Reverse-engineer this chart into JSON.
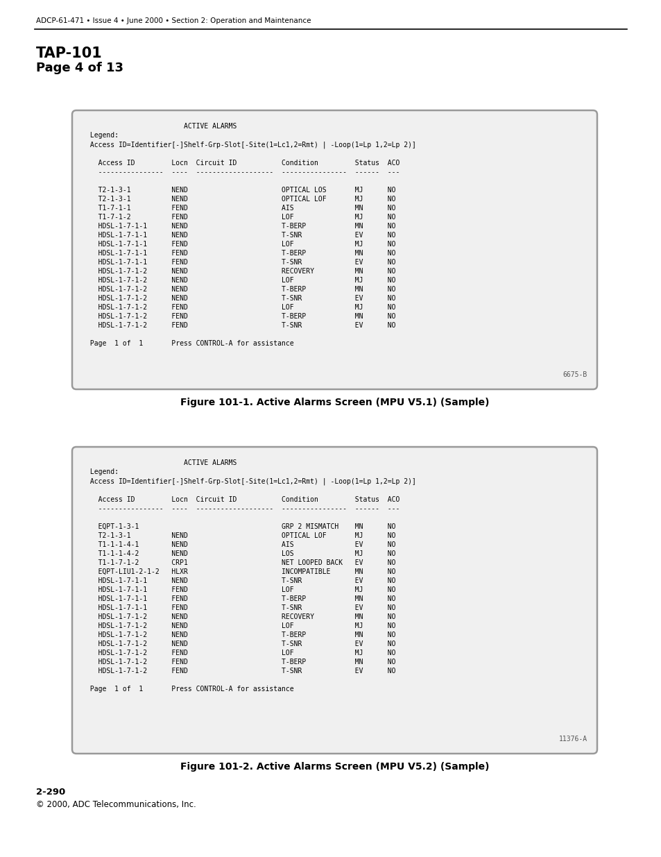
{
  "header_text": "ADCP-61-471 • Issue 4 • June 2000 • Section 2: Operation and Maintenance",
  "tap_title": "TAP-101",
  "tap_subtitle": "Page 4 of 13",
  "footer_page": "2-290",
  "footer_copy": "© 2000, ADC Telecommunications, Inc.",
  "fig1_label": "Figure 101-1. Active Alarms Screen (MPU V5.1) (Sample)",
  "fig2_label": "Figure 101-2. Active Alarms Screen (MPU V5.2) (Sample)",
  "fig1_tag": "6675-B",
  "fig2_tag": "11376-A",
  "fig1_content": [
    "                        ACTIVE ALARMS",
    " Legend:",
    " Access ID=Identifier[-]Shelf-Grp-Slot[-Site(1=Lc1,2=Rmt) | -Loop(1=Lp 1,2=Lp 2)]",
    "",
    "   Access ID         Locn  Circuit ID           Condition         Status  ACO",
    "   ----------------  ----  -------------------  ----------------  ------  ---",
    "",
    "   T2-1-3-1          NEND                       OPTICAL LOS       MJ      NO",
    "   T2-1-3-1          NEND                       OPTICAL LOF       MJ      NO",
    "   T1-7-1-1          FEND                       AIS               MN      NO",
    "   T1-7-1-2          FEND                       LOF               MJ      NO",
    "   HDSL-1-7-1-1      NEND                       T-BERP            MN      NO",
    "   HDSL-1-7-1-1      NEND                       T-SNR             EV      NO",
    "   HDSL-1-7-1-1      FEND                       LOF               MJ      NO",
    "   HDSL-1-7-1-1      FEND                       T-BERP            MN      NO",
    "   HDSL-1-7-1-1      FEND                       T-SNR             EV      NO",
    "   HDSL-1-7-1-2      NEND                       RECOVERY          MN      NO",
    "   HDSL-1-7-1-2      NEND                       LOF               MJ      NO",
    "   HDSL-1-7-1-2      NEND                       T-BERP            MN      NO",
    "   HDSL-1-7-1-2      NEND                       T-SNR             EV      NO",
    "   HDSL-1-7-1-2      FEND                       LOF               MJ      NO",
    "   HDSL-1-7-1-2      FEND                       T-BERP            MN      NO",
    "   HDSL-1-7-1-2      FEND                       T-SNR             EV      NO",
    "",
    " Page  1 of  1       Press CONTROL-A for assistance"
  ],
  "fig2_content": [
    "                        ACTIVE ALARMS",
    " Legend:",
    " Access ID=Identifier[-]Shelf-Grp-Slot[-Site(1=Lc1,2=Rmt) | -Loop(1=Lp 1,2=Lp 2)]",
    "",
    "   Access ID         Locn  Circuit ID           Condition         Status  ACO",
    "   ----------------  ----  -------------------  ----------------  ------  ---",
    "",
    "   EQPT-1-3-1                                   GRP 2 MISMATCH    MN      NO",
    "   T2-1-3-1          NEND                       OPTICAL LOF       MJ      NO",
    "   T1-1-1-4-1        NEND                       AIS               EV      NO",
    "   T1-1-1-4-2        NEND                       LOS               MJ      NO",
    "   T1-1-7-1-2        CRP1                       NET LOOPED BACK   EV      NO",
    "   EQPT-LIU1-2-1-2   HLXR                       INCOMPATIBLE      MN      NO",
    "   HDSL-1-7-1-1      NEND                       T-SNR             EV      NO",
    "   HDSL-1-7-1-1      FEND                       LOF               MJ      NO",
    "   HDSL-1-7-1-1      FEND                       T-BERP            MN      NO",
    "   HDSL-1-7-1-1      FEND                       T-SNR             EV      NO",
    "   HDSL-1-7-1-2      NEND                       RECOVERY          MN      NO",
    "   HDSL-1-7-1-2      NEND                       LOF               MJ      NO",
    "   HDSL-1-7-1-2      NEND                       T-BERP            MN      NO",
    "   HDSL-1-7-1-2      NEND                       T-SNR             EV      NO",
    "   HDSL-1-7-1-2      FEND                       LOF               MJ      NO",
    "   HDSL-1-7-1-2      FEND                       T-BERP            MN      NO",
    "   HDSL-1-7-1-2      FEND                       T-SNR             EV      NO",
    "",
    " Page  1 of  1       Press CONTROL-A for assistance"
  ],
  "bg_color": "#ffffff",
  "box_bg": "#f0f0f0",
  "box_border": "#999999",
  "text_color": "#000000",
  "mono_font_size": 7.0,
  "header_font_size": 7.5,
  "tap_title_font_size": 15,
  "tap_sub_font_size": 13,
  "fig_label_font_size": 10,
  "footer_font_size": 8.5,
  "tag_font_size": 7.0
}
